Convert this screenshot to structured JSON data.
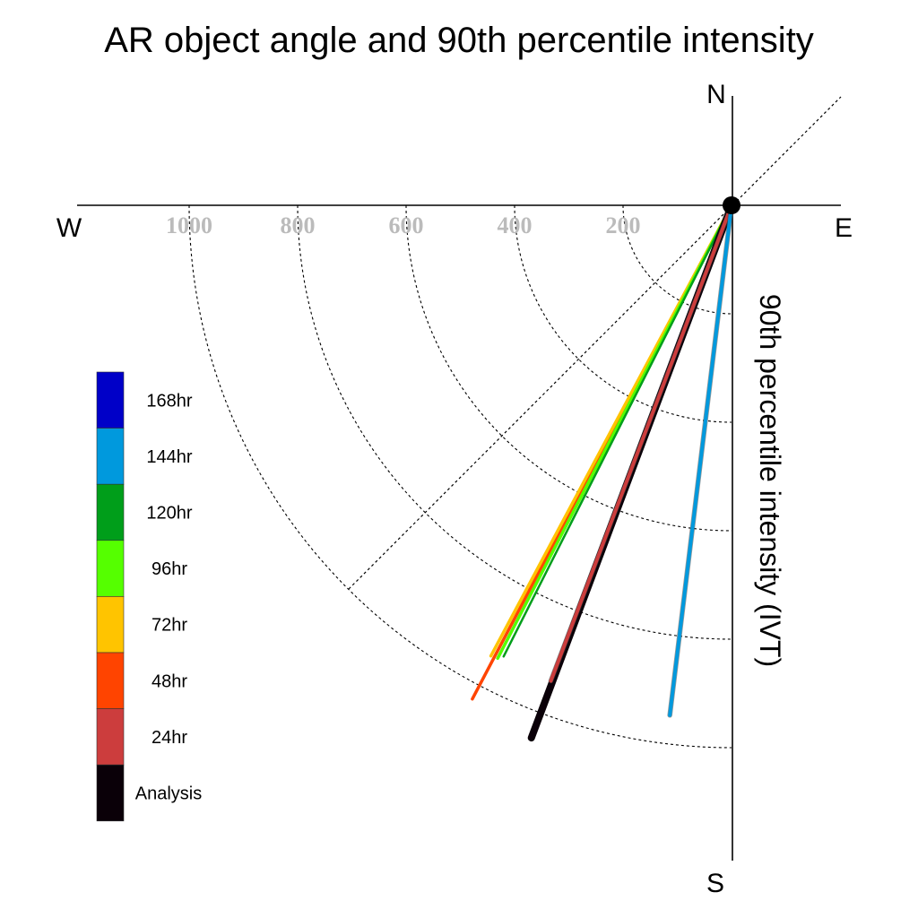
{
  "chart_data": {
    "type": "polar-vector",
    "title": "AR object angle and 90th percentile intensity",
    "ylabel": "90th percentile intensity (IVT)",
    "directions": {
      "north": "N",
      "south": "S",
      "east": "E",
      "west": "W"
    },
    "rings": [
      200,
      400,
      600,
      800,
      1000
    ],
    "ring_labels": [
      "200",
      "400",
      "600",
      "800",
      "1000"
    ],
    "rmax": 1000,
    "angle_convention": "degrees clockwise from north",
    "grid": true,
    "legend_placement": "lower-left",
    "series": [
      {
        "name": "Analysis",
        "color": "#0a0008",
        "angle": 200.6,
        "intensity": 1049
      },
      {
        "name": "24hr",
        "color": "#cc3d3d",
        "angle": 200.8,
        "intensity": 938
      },
      {
        "name": "48hr",
        "color": "#ff4400",
        "angle": 207.7,
        "intensity": 1028
      },
      {
        "name": "72hr",
        "color": "#ffc400",
        "angle": 208.1,
        "intensity": 942
      },
      {
        "name": "96hr",
        "color": "#55ff00",
        "angle": 207.3,
        "intensity": 940
      },
      {
        "name": "120hr",
        "color": "#009e1a",
        "angle": 206.8,
        "intensity": 932
      },
      {
        "name": "144hr",
        "color": "#0099dd",
        "angle": 186.9,
        "intensity": 947
      },
      {
        "name": "168hr",
        "color": "#0000c8",
        "angle": null,
        "intensity": null
      }
    ]
  }
}
